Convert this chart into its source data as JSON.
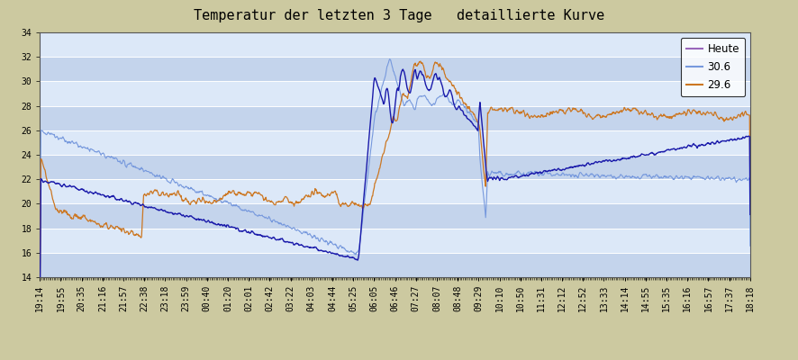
{
  "title": "Temperatur der letzten 3 Tage   detaillierte Kurve",
  "ylim": [
    14,
    34
  ],
  "yticks": [
    14,
    16,
    18,
    20,
    22,
    24,
    26,
    28,
    30,
    32,
    34
  ],
  "background_outer": "#ccc9a0",
  "background_stripe_light": "#dce8f8",
  "background_stripe_dark": "#c4d4ec",
  "time_labels": [
    "19:14",
    "19:55",
    "20:35",
    "21:16",
    "21:57",
    "22:38",
    "23:18",
    "23:59",
    "00:40",
    "01:20",
    "02:01",
    "02:42",
    "03:22",
    "04:03",
    "04:44",
    "05:25",
    "06:05",
    "06:46",
    "07:27",
    "08:07",
    "08:48",
    "09:29",
    "10:10",
    "10:50",
    "11:31",
    "12:12",
    "12:52",
    "13:33",
    "14:14",
    "14:55",
    "15:35",
    "16:16",
    "16:57",
    "17:37",
    "18:18"
  ],
  "legend_labels": [
    "Heute",
    "30.6",
    "29.6"
  ],
  "heute_color": "#1a1aaa",
  "tag30_color": "#7799dd",
  "tag29_color": "#cc7722",
  "title_fontsize": 11,
  "tick_fontsize": 7
}
